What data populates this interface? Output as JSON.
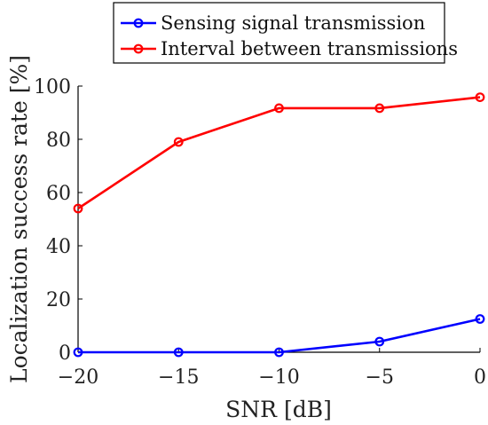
{
  "chart_data": {
    "type": "line",
    "x": [
      -20,
      -15,
      -10,
      -5,
      0
    ],
    "xticks": [
      -20,
      -15,
      -10,
      -5,
      0
    ],
    "xtick_labels": [
      "−20",
      "−15",
      "−10",
      "−5",
      "0"
    ],
    "yticks": [
      0,
      20,
      40,
      60,
      80,
      100
    ],
    "xlabel": "SNR [dB]",
    "ylabel": "Localization success rate [%]",
    "xlim": [
      -20,
      0
    ],
    "ylim": [
      0,
      100
    ],
    "grid": false,
    "legend_position": "top",
    "series": [
      {
        "name": "Sensing signal transmission",
        "color": "#0000ff",
        "values": [
          0,
          0,
          0,
          4,
          12.5
        ]
      },
      {
        "name": "Interval between transmissions",
        "color": "#ff0000",
        "values": [
          54,
          79,
          91.7,
          91.7,
          95.8
        ]
      }
    ]
  }
}
